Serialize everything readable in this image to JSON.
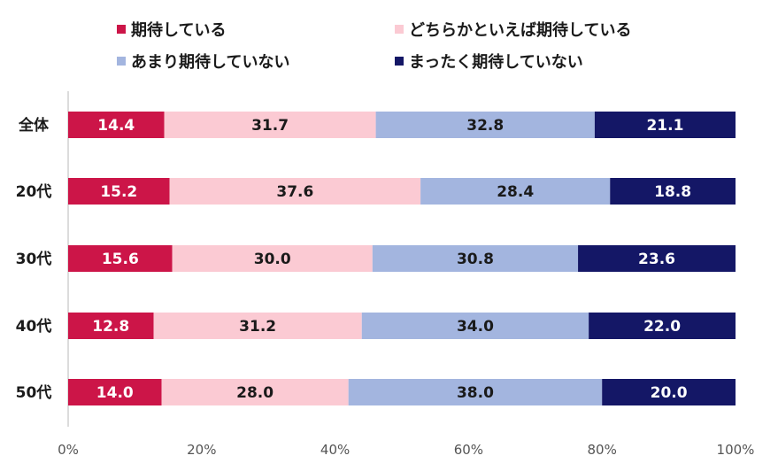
{
  "chart_data": {
    "type": "bar",
    "orientation": "horizontal",
    "stacked": true,
    "title": "",
    "xlabel": "",
    "ylabel": "",
    "xlim": [
      0,
      100
    ],
    "x_ticks": [
      "0%",
      "20%",
      "40%",
      "60%",
      "80%",
      "100%"
    ],
    "legend_position": "top",
    "categories": [
      "全体",
      "20代",
      "30代",
      "40代",
      "50代"
    ],
    "series": [
      {
        "name": "期待している",
        "color": "#cc1548",
        "label_color": "#ffffff",
        "values": [
          14.4,
          15.2,
          15.6,
          12.8,
          14.0
        ]
      },
      {
        "name": "どちらかといえば期待している",
        "color": "#fbcad3",
        "label_color": "#1a1a1a",
        "values": [
          31.7,
          37.6,
          30.0,
          31.2,
          28.0
        ]
      },
      {
        "name": "あまり期待していない",
        "color": "#a3b5df",
        "label_color": "#1a1a1a",
        "values": [
          32.8,
          28.4,
          30.8,
          34.0,
          38.0
        ]
      },
      {
        "name": "まったく期待していない",
        "color": "#141766",
        "label_color": "#ffffff",
        "values": [
          21.1,
          18.8,
          23.6,
          22.0,
          20.0
        ]
      }
    ],
    "data_labels": [
      [
        "14.4",
        "15.2",
        "15.6",
        "12.8",
        "14.0"
      ],
      [
        "31.7",
        "37.6",
        "30.0",
        "31.2",
        "28.0"
      ],
      [
        "32.8",
        "28.4",
        "30.8",
        "34.0",
        "38.0"
      ],
      [
        "21.1",
        "18.8",
        "23.6",
        "22.0",
        "20.0"
      ]
    ]
  }
}
